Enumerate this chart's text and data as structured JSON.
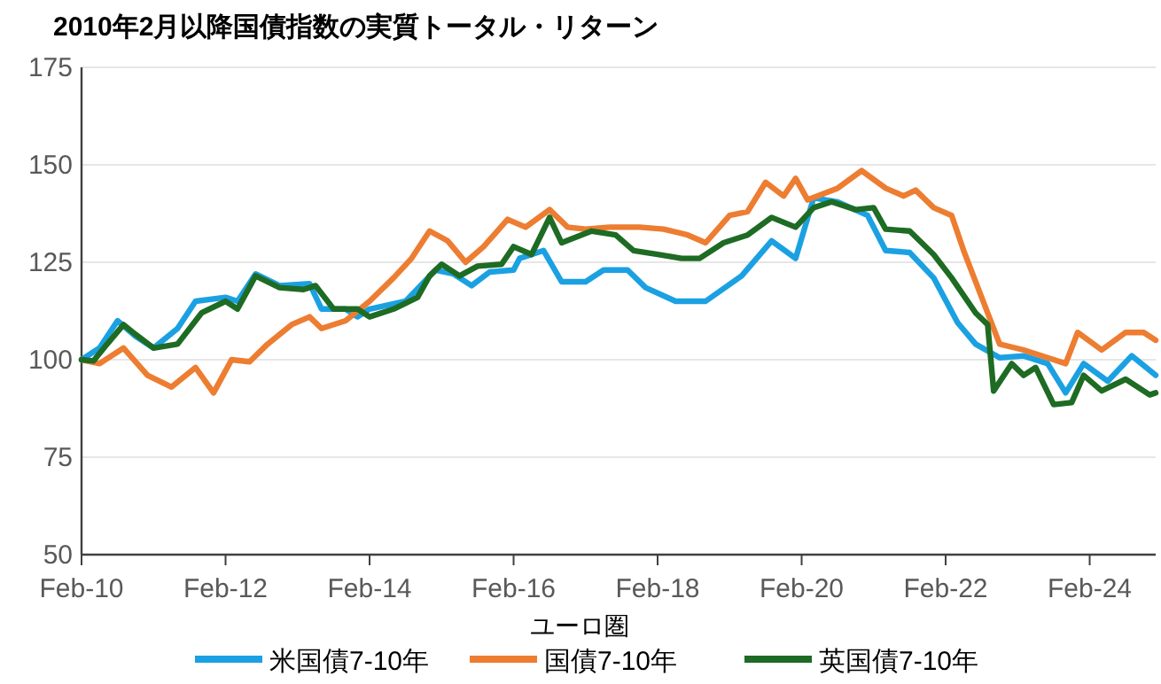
{
  "chart_data": {
    "type": "line",
    "title": "2010年2月以降国債指数の実質トータル・リターン",
    "legend_title": "ユーロ圏",
    "legend": "bottom",
    "grid": "y",
    "xlim": [
      "2010-02",
      "2025-01"
    ],
    "xticks": [
      {
        "value": "2010-02",
        "label": "Feb-10"
      },
      {
        "value": "2012-02",
        "label": "Feb-12"
      },
      {
        "value": "2014-02",
        "label": "Feb-14"
      },
      {
        "value": "2016-02",
        "label": "Feb-16"
      },
      {
        "value": "2018-02",
        "label": "Feb-18"
      },
      {
        "value": "2020-02",
        "label": "Feb-20"
      },
      {
        "value": "2022-02",
        "label": "Feb-22"
      },
      {
        "value": "2024-02",
        "label": "Feb-24"
      }
    ],
    "ylim": [
      50,
      175
    ],
    "yticks": [
      50,
      75,
      100,
      125,
      150,
      175
    ],
    "series": [
      {
        "name": "米国債7-10年",
        "color": "#1ba1e2",
        "x": [
          "2010-02",
          "2010-05",
          "2010-08",
          "2010-11",
          "2011-02",
          "2011-06",
          "2011-09",
          "2012-02",
          "2012-04",
          "2012-07",
          "2012-11",
          "2013-04",
          "2013-06",
          "2013-10",
          "2013-12",
          "2014-02",
          "2014-08",
          "2015-01",
          "2015-04",
          "2015-07",
          "2015-10",
          "2016-02",
          "2016-03",
          "2016-07",
          "2016-10",
          "2017-02",
          "2017-05",
          "2017-09",
          "2017-12",
          "2018-05",
          "2018-10",
          "2019-04",
          "2019-09",
          "2020-01",
          "2020-04",
          "2020-08",
          "2021-01",
          "2021-04",
          "2021-08",
          "2021-12",
          "2022-04",
          "2022-07",
          "2022-11",
          "2023-03",
          "2023-07",
          "2023-10",
          "2024-01",
          "2024-05",
          "2024-09",
          "2025-01"
        ],
        "values": [
          100,
          103,
          110,
          106,
          103,
          108,
          115,
          116,
          115,
          122,
          119,
          119.5,
          113,
          113,
          111,
          113,
          115,
          123,
          122,
          119,
          122.5,
          123,
          126,
          128,
          120,
          120,
          123,
          123,
          118.5,
          115,
          115,
          121.5,
          130.5,
          126,
          141.5,
          140.5,
          137,
          128,
          127.5,
          121,
          109.5,
          104,
          100.5,
          101,
          99,
          91.5,
          99,
          94.5,
          101,
          96
        ]
      },
      {
        "name": "国債7-10年",
        "color": "#ed7d31",
        "x": [
          "2010-02",
          "2010-05",
          "2010-09",
          "2011-01",
          "2011-05",
          "2011-09",
          "2011-12",
          "2012-03",
          "2012-06",
          "2012-09",
          "2013-01",
          "2013-04",
          "2013-06",
          "2013-10",
          "2014-02",
          "2014-06",
          "2014-09",
          "2014-12",
          "2015-03",
          "2015-06",
          "2015-09",
          "2016-01",
          "2016-04",
          "2016-08",
          "2016-11",
          "2017-02",
          "2017-06",
          "2017-11",
          "2018-03",
          "2018-07",
          "2018-10",
          "2019-02",
          "2019-05",
          "2019-08",
          "2019-11",
          "2020-01",
          "2020-03",
          "2020-08",
          "2020-12",
          "2021-04",
          "2021-07",
          "2021-09",
          "2021-12",
          "2022-03",
          "2022-05",
          "2022-08",
          "2022-11",
          "2023-03",
          "2023-07",
          "2023-10",
          "2023-12",
          "2024-04",
          "2024-08",
          "2024-11",
          "2025-01"
        ],
        "values": [
          100,
          99,
          103,
          96,
          93,
          98,
          91.5,
          100,
          99.5,
          104,
          109,
          111,
          108,
          110,
          115,
          121,
          126,
          133,
          130.5,
          125,
          129,
          136,
          134,
          138.5,
          134,
          133.5,
          134,
          134,
          133.5,
          132,
          130,
          137,
          138,
          145.5,
          142,
          146.5,
          141,
          144,
          148.5,
          144,
          142,
          143.5,
          139,
          137,
          128,
          116,
          104,
          102.5,
          100.5,
          99,
          107,
          102.5,
          107,
          107,
          105
        ]
      },
      {
        "name": "英国債7-10年",
        "color": "#1e6b24",
        "x": [
          "2010-02",
          "2010-04",
          "2010-06",
          "2010-09",
          "2010-11",
          "2011-02",
          "2011-06",
          "2011-10",
          "2012-02",
          "2012-04",
          "2012-07",
          "2012-11",
          "2013-03",
          "2013-05",
          "2013-08",
          "2013-12",
          "2014-02",
          "2014-06",
          "2014-10",
          "2014-12",
          "2015-02",
          "2015-05",
          "2015-08",
          "2015-12",
          "2016-02",
          "2016-05",
          "2016-08",
          "2016-10",
          "2017-03",
          "2017-07",
          "2017-10",
          "2018-02",
          "2018-06",
          "2018-09",
          "2019-01",
          "2019-05",
          "2019-09",
          "2020-01",
          "2020-04",
          "2020-07",
          "2020-11",
          "2021-02",
          "2021-04",
          "2021-08",
          "2021-12",
          "2022-03",
          "2022-07",
          "2022-09",
          "2022-10",
          "2023-01",
          "2023-03",
          "2023-05",
          "2023-08",
          "2023-11",
          "2024-01",
          "2024-04",
          "2024-08",
          "2024-12",
          "2025-01"
        ],
        "values": [
          100,
          99.7,
          103.5,
          109,
          106.5,
          103,
          104,
          112,
          115,
          113,
          121.5,
          118.5,
          118,
          119,
          113,
          113,
          111,
          113,
          116,
          121.5,
          124.5,
          121.5,
          124,
          124.5,
          129,
          127,
          136.5,
          130,
          133,
          132,
          128,
          127,
          126,
          126,
          130,
          132,
          136.5,
          134,
          139,
          140.5,
          138.5,
          139,
          133.5,
          133,
          127,
          121,
          112,
          109,
          92,
          99,
          96,
          98,
          88.5,
          89,
          96,
          92,
          95,
          91,
          91.5
        ]
      }
    ]
  }
}
